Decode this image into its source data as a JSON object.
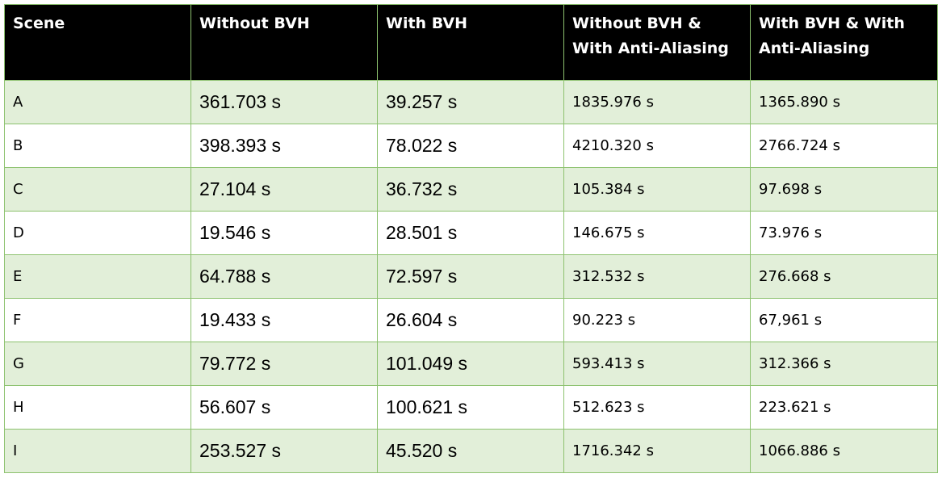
{
  "table": {
    "headers": [
      "Scene",
      "Without BVH",
      "With BVH",
      "Without BVH & With Anti-Aliasing",
      "With BVH & With Anti-Aliasing"
    ],
    "rows": [
      [
        "A",
        "361.703 s",
        "39.257 s",
        "1835.976 s",
        "1365.890 s"
      ],
      [
        "B",
        "398.393 s",
        "78.022 s",
        "4210.320 s",
        "2766.724 s"
      ],
      [
        "C",
        "27.104 s",
        "36.732 s",
        "105.384 s",
        "97.698 s"
      ],
      [
        "D",
        "19.546 s",
        "28.501 s",
        "146.675 s",
        "73.976 s"
      ],
      [
        "E",
        "64.788 s",
        "72.597 s",
        "312.532 s",
        "276.668 s"
      ],
      [
        "F",
        "19.433 s",
        "26.604 s",
        "90.223 s",
        "67,961 s"
      ],
      [
        "G",
        "79.772 s",
        "101.049 s",
        "593.413 s",
        "312.366 s"
      ],
      [
        "H",
        "56.607 s",
        "100.621 s",
        "512.623 s",
        "223.621 s"
      ],
      [
        "I",
        "253.527 s",
        "45.520 s",
        "1716.342 s",
        "1066.886 s"
      ]
    ]
  }
}
